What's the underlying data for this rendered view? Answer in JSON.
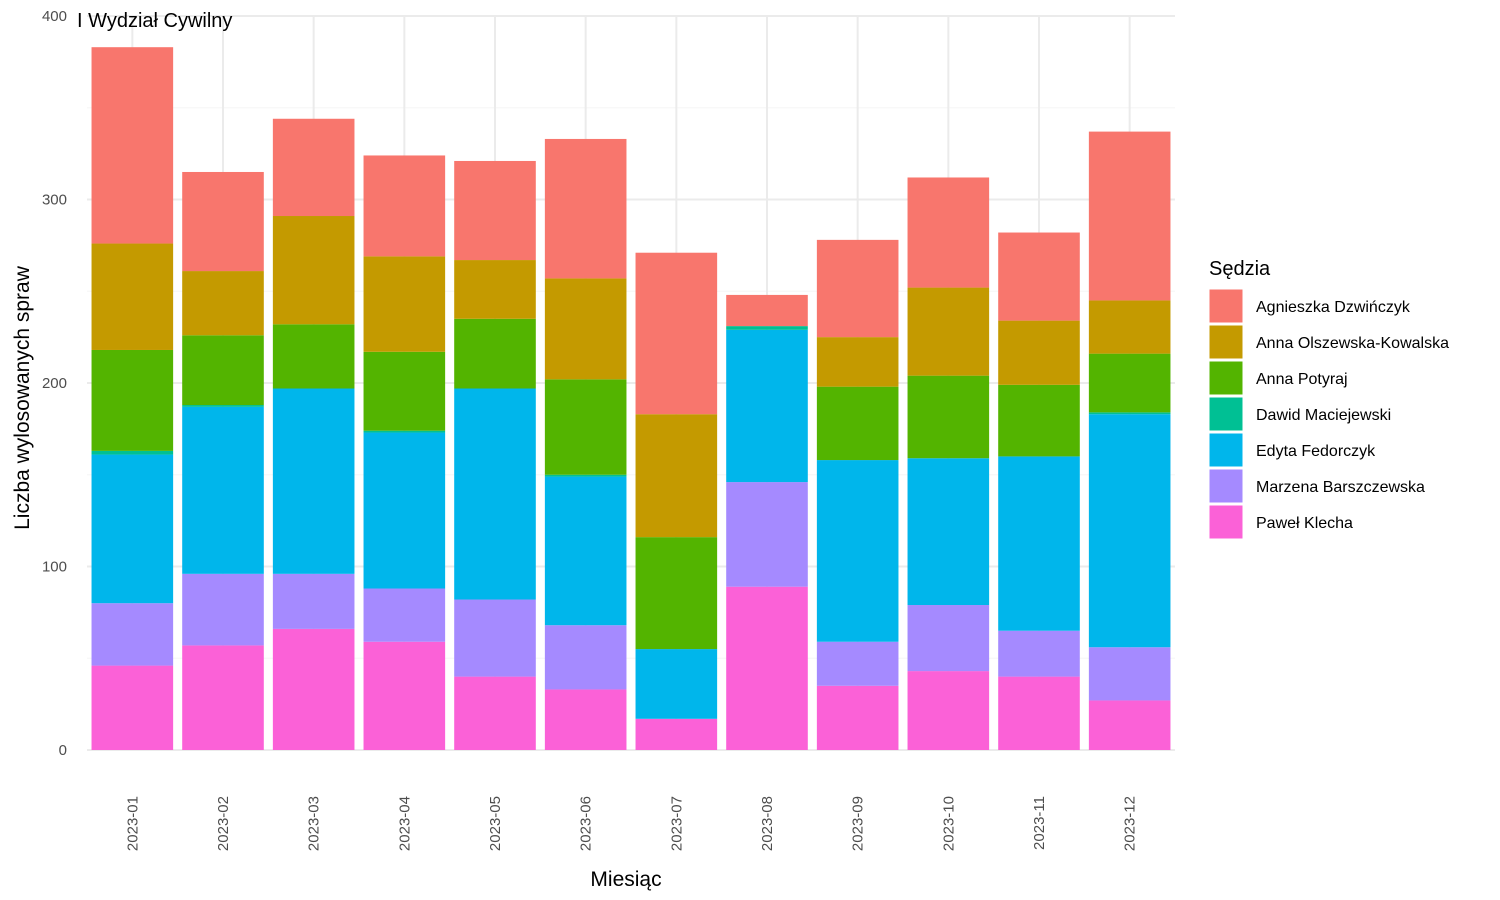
{
  "chart_data": {
    "type": "bar",
    "stacked": true,
    "title": "I Wydział Cywilny",
    "xlabel": "Miesiąc",
    "ylabel": "Liczba wylosowanych spraw",
    "ylim": [
      0,
      400
    ],
    "yticks": [
      0,
      100,
      200,
      300,
      400
    ],
    "grid": true,
    "legend_title": "Sędzia",
    "legend_position": "right",
    "categories": [
      "2023-01",
      "2023-02",
      "2023-03",
      "2023-04",
      "2023-05",
      "2023-06",
      "2023-07",
      "2023-08",
      "2023-09",
      "2023-10",
      "2023-11",
      "2023-12"
    ],
    "series": [
      {
        "name": "Agnieszka Dzwińczyk",
        "color": "#F8766D",
        "values": [
          107,
          54,
          53,
          55,
          54,
          76,
          88,
          17,
          53,
          60,
          48,
          92
        ]
      },
      {
        "name": "Anna Olszewska-Kowalska",
        "color": "#C49A00",
        "values": [
          58,
          35,
          59,
          52,
          32,
          55,
          67,
          0,
          27,
          48,
          35,
          29
        ]
      },
      {
        "name": "Anna Potyraj",
        "color": "#53B400",
        "values": [
          55,
          38,
          35,
          43,
          38,
          52,
          61,
          0,
          40,
          45,
          39,
          32
        ]
      },
      {
        "name": "Dawid Maciejewski",
        "color": "#00C094",
        "values": [
          2,
          1,
          0,
          1,
          0,
          1,
          0,
          2,
          0,
          0,
          0,
          1
        ]
      },
      {
        "name": "Edyta Fedorczyk",
        "color": "#00B6EB",
        "values": [
          81,
          91,
          101,
          85,
          115,
          81,
          38,
          83,
          99,
          80,
          95,
          127
        ]
      },
      {
        "name": "Marzena Barszczewska",
        "color": "#A58AFF",
        "values": [
          34,
          39,
          30,
          29,
          42,
          35,
          0,
          57,
          24,
          36,
          25,
          29
        ]
      },
      {
        "name": "Paweł Klecha",
        "color": "#FB61D7",
        "values": [
          46,
          57,
          66,
          59,
          40,
          33,
          17,
          89,
          35,
          43,
          40,
          27
        ]
      }
    ]
  }
}
